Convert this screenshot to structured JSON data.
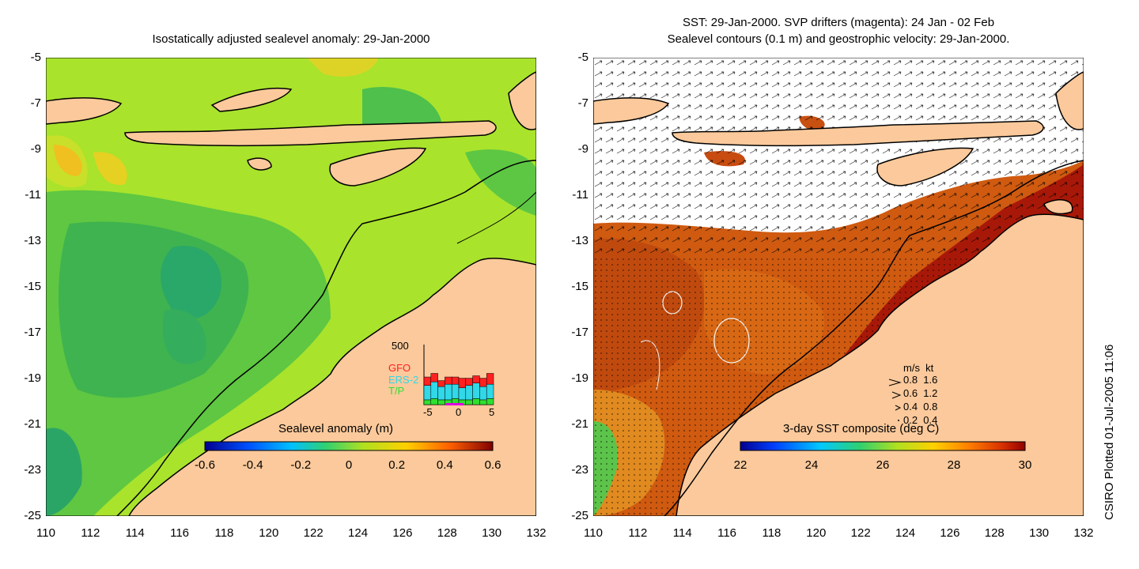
{
  "left_panel": {
    "title": "Isostatically adjusted sealevel anomaly: 29-Jan-2000",
    "colorbar": {
      "title": "Sealevel anomaly (m)",
      "ticks": [
        "-0.6",
        "-0.4",
        "-0.2",
        "0",
        "0.2",
        "0.4",
        "0.6"
      ]
    },
    "inset": {
      "ymax_label": "500",
      "x_ticks": [
        "-5",
        "0",
        "5"
      ],
      "legend": [
        {
          "name": "GFO",
          "color": "#ff2020"
        },
        {
          "name": "ERS-2",
          "color": "#30d8e8"
        },
        {
          "name": "T/P",
          "color": "#30e030"
        }
      ],
      "bars": [
        {
          "tp": 40,
          "ers": 120,
          "gfo": 70
        },
        {
          "tp": 50,
          "ers": 140,
          "gfo": 70
        },
        {
          "tp": 40,
          "ers": 110,
          "gfo": 50
        },
        {
          "tp": 40,
          "ers": 130,
          "gfo": 60
        },
        {
          "tp": 50,
          "ers": 120,
          "gfo": 60
        },
        {
          "tp": 40,
          "ers": 100,
          "gfo": 80
        },
        {
          "tp": 40,
          "ers": 120,
          "gfo": 60
        },
        {
          "tp": 50,
          "ers": 130,
          "gfo": 60
        },
        {
          "tp": 40,
          "ers": 110,
          "gfo": 70
        },
        {
          "tp": 50,
          "ers": 120,
          "gfo": 90
        }
      ],
      "ymax": 500
    }
  },
  "right_panel": {
    "title_line1": "SST: 29-Jan-2000. SVP drifters (magenta): 24 Jan - 02 Feb",
    "title_line2": "Sealevel contours (0.1 m) and geostrophic velocity: 29-Jan-2000.",
    "colorbar": {
      "title": "3-day SST composite (deg C)",
      "ticks": [
        "22",
        "24",
        "26",
        "28",
        "30"
      ]
    },
    "velocity_legend": {
      "header": "m/s  kt",
      "rows": [
        "0.8  1.6",
        "0.6  1.2",
        "0.4  0.8",
        "0.2  0.4"
      ]
    }
  },
  "axes": {
    "y_ticks": [
      "-5",
      "-7",
      "-9",
      "-11",
      "-13",
      "-15",
      "-17",
      "-19",
      "-21",
      "-23",
      "-25"
    ],
    "x_ticks": [
      "110",
      "112",
      "114",
      "116",
      "118",
      "120",
      "122",
      "124",
      "126",
      "128",
      "130",
      "132"
    ]
  },
  "credit": "CSIRO Plotted 01-Jul-2005 11:06",
  "colors": {
    "land": "#fbc99b",
    "sst_hot": "#b01a08",
    "sst_mid": "#d0500c",
    "sla_green": "#9be02c",
    "sla_dark": "#3cb34a"
  }
}
